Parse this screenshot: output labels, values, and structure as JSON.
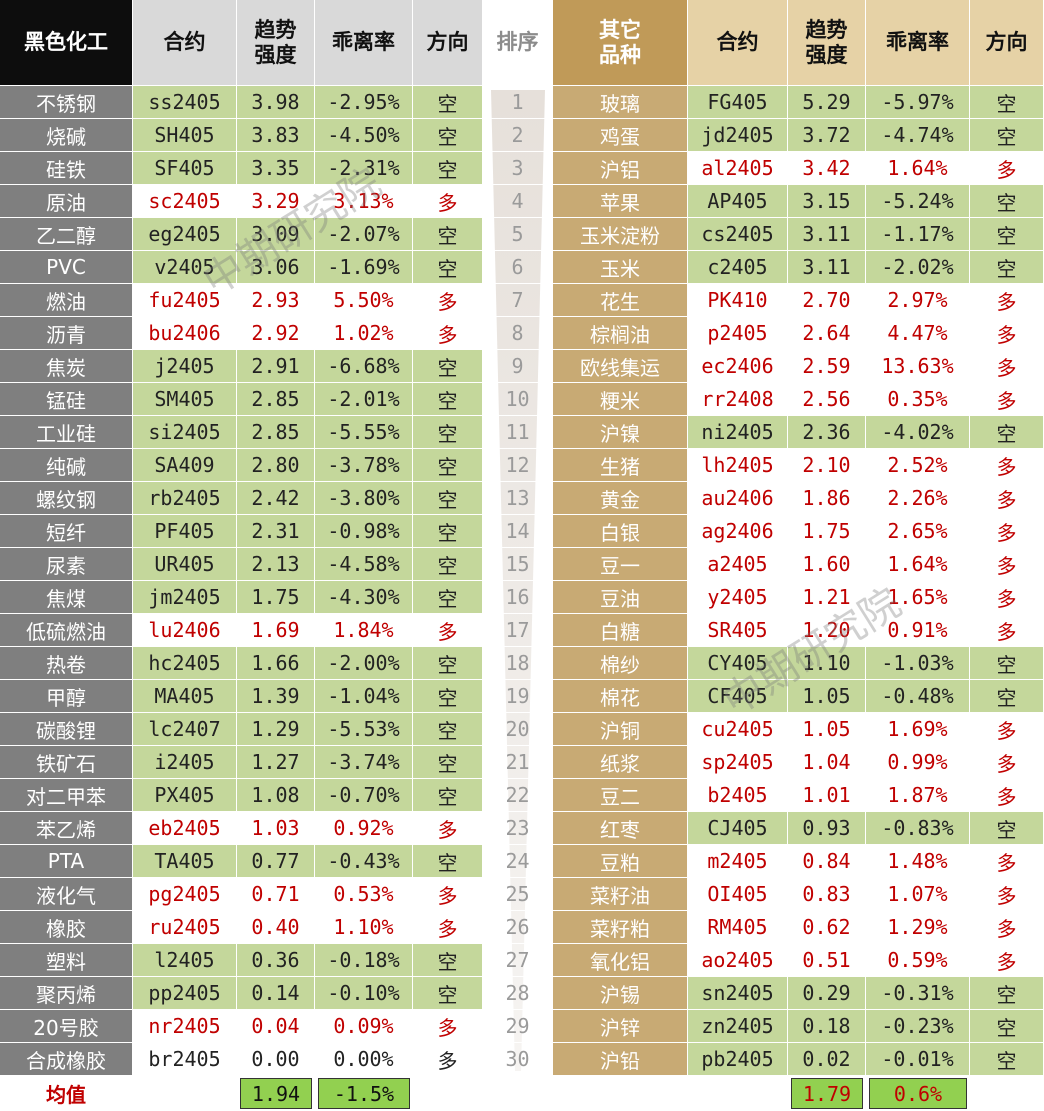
{
  "watermark": "中期研究院",
  "left": {
    "header": [
      "黑色化工",
      "合约",
      "趋势强度",
      "乖离率",
      "方向"
    ],
    "rows": [
      [
        "不锈钢",
        "ss2405",
        "3.98",
        "-2.95%",
        "空"
      ],
      [
        "烧碱",
        "SH405",
        "3.83",
        "-4.50%",
        "空"
      ],
      [
        "硅铁",
        "SF405",
        "3.35",
        "-2.31%",
        "空"
      ],
      [
        "原油",
        "sc2405",
        "3.29",
        "3.13%",
        "多"
      ],
      [
        "乙二醇",
        "eg2405",
        "3.09",
        "-2.07%",
        "空"
      ],
      [
        "PVC",
        "v2405",
        "3.06",
        "-1.69%",
        "空"
      ],
      [
        "燃油",
        "fu2405",
        "2.93",
        "5.50%",
        "多"
      ],
      [
        "沥青",
        "bu2406",
        "2.92",
        "1.02%",
        "多"
      ],
      [
        "焦炭",
        "j2405",
        "2.91",
        "-6.68%",
        "空"
      ],
      [
        "锰硅",
        "SM405",
        "2.85",
        "-2.01%",
        "空"
      ],
      [
        "工业硅",
        "si2405",
        "2.85",
        "-5.55%",
        "空"
      ],
      [
        "纯碱",
        "SA409",
        "2.80",
        "-3.78%",
        "空"
      ],
      [
        "螺纹钢",
        "rb2405",
        "2.42",
        "-3.80%",
        "空"
      ],
      [
        "短纤",
        "PF405",
        "2.31",
        "-0.98%",
        "空"
      ],
      [
        "尿素",
        "UR405",
        "2.13",
        "-4.58%",
        "空"
      ],
      [
        "焦煤",
        "jm2405",
        "1.75",
        "-4.30%",
        "空"
      ],
      [
        "低硫燃油",
        "lu2406",
        "1.69",
        "1.84%",
        "多"
      ],
      [
        "热卷",
        "hc2405",
        "1.66",
        "-2.00%",
        "空"
      ],
      [
        "甲醇",
        "MA405",
        "1.39",
        "-1.04%",
        "空"
      ],
      [
        "碳酸锂",
        "lc2407",
        "1.29",
        "-5.53%",
        "空"
      ],
      [
        "铁矿石",
        "i2405",
        "1.27",
        "-3.74%",
        "空"
      ],
      [
        "对二甲苯",
        "PX405",
        "1.08",
        "-0.70%",
        "空"
      ],
      [
        "苯乙烯",
        "eb2405",
        "1.03",
        "0.92%",
        "多"
      ],
      [
        "PTA",
        "TA405",
        "0.77",
        "-0.43%",
        "空"
      ],
      [
        "液化气",
        "pg2405",
        "0.71",
        "0.53%",
        "多"
      ],
      [
        "橡胶",
        "ru2405",
        "0.40",
        "1.10%",
        "多"
      ],
      [
        "塑料",
        "l2405",
        "0.36",
        "-0.18%",
        "空"
      ],
      [
        "聚丙烯",
        "pp2405",
        "0.14",
        "-0.10%",
        "空"
      ],
      [
        "20号胶",
        "nr2405",
        "0.04",
        "0.09%",
        "多"
      ],
      [
        "合成橡胶",
        "br2405",
        "0.00",
        "0.00%",
        "多"
      ]
    ],
    "footer": {
      "label": "均值",
      "strength": "1.94",
      "deviation": "-1.5%"
    }
  },
  "rank": {
    "header": "排序",
    "values": [
      1,
      2,
      3,
      4,
      5,
      6,
      7,
      8,
      9,
      10,
      11,
      12,
      13,
      14,
      15,
      16,
      17,
      18,
      19,
      20,
      21,
      22,
      23,
      24,
      25,
      26,
      27,
      28,
      29,
      30
    ]
  },
  "right": {
    "header": [
      "其它品种",
      "合约",
      "趋势强度",
      "乖离率",
      "方向"
    ],
    "rows": [
      [
        "玻璃",
        "FG405",
        "5.29",
        "-5.97%",
        "空"
      ],
      [
        "鸡蛋",
        "jd2405",
        "3.72",
        "-4.74%",
        "空"
      ],
      [
        "沪铝",
        "al2405",
        "3.42",
        "1.64%",
        "多"
      ],
      [
        "苹果",
        "AP405",
        "3.15",
        "-5.24%",
        "空"
      ],
      [
        "玉米淀粉",
        "cs2405",
        "3.11",
        "-1.17%",
        "空"
      ],
      [
        "玉米",
        "c2405",
        "3.11",
        "-2.02%",
        "空"
      ],
      [
        "花生",
        "PK410",
        "2.70",
        "2.97%",
        "多"
      ],
      [
        "棕榈油",
        "p2405",
        "2.64",
        "4.47%",
        "多"
      ],
      [
        "欧线集运",
        "ec2406",
        "2.59",
        "13.63%",
        "多"
      ],
      [
        "粳米",
        "rr2408",
        "2.56",
        "0.35%",
        "多"
      ],
      [
        "沪镍",
        "ni2405",
        "2.36",
        "-4.02%",
        "空"
      ],
      [
        "生猪",
        "lh2405",
        "2.10",
        "2.52%",
        "多"
      ],
      [
        "黄金",
        "au2406",
        "1.86",
        "2.26%",
        "多"
      ],
      [
        "白银",
        "ag2406",
        "1.75",
        "2.65%",
        "多"
      ],
      [
        "豆一",
        "a2405",
        "1.60",
        "1.64%",
        "多"
      ],
      [
        "豆油",
        "y2405",
        "1.21",
        "1.65%",
        "多"
      ],
      [
        "白糖",
        "SR405",
        "1.20",
        "0.91%",
        "多"
      ],
      [
        "棉纱",
        "CY405",
        "1.10",
        "-1.03%",
        "空"
      ],
      [
        "棉花",
        "CF405",
        "1.05",
        "-0.48%",
        "空"
      ],
      [
        "沪铜",
        "cu2405",
        "1.05",
        "1.69%",
        "多"
      ],
      [
        "纸浆",
        "sp2405",
        "1.04",
        "0.99%",
        "多"
      ],
      [
        "豆二",
        "b2405",
        "1.01",
        "1.87%",
        "多"
      ],
      [
        "红枣",
        "CJ405",
        "0.93",
        "-0.83%",
        "空"
      ],
      [
        "豆粕",
        "m2405",
        "0.84",
        "1.48%",
        "多"
      ],
      [
        "菜籽油",
        "OI405",
        "0.83",
        "1.07%",
        "多"
      ],
      [
        "菜籽粕",
        "RM405",
        "0.62",
        "1.29%",
        "多"
      ],
      [
        "氧化铝",
        "ao2405",
        "0.51",
        "0.59%",
        "多"
      ],
      [
        "沪锡",
        "sn2405",
        "0.29",
        "-0.31%",
        "空"
      ],
      [
        "沪锌",
        "zn2405",
        "0.18",
        "-0.23%",
        "空"
      ],
      [
        "沪铅",
        "pb2405",
        "0.02",
        "-0.01%",
        "空"
      ]
    ],
    "footer": {
      "strength": "1.79",
      "deviation": "0.6%"
    }
  }
}
